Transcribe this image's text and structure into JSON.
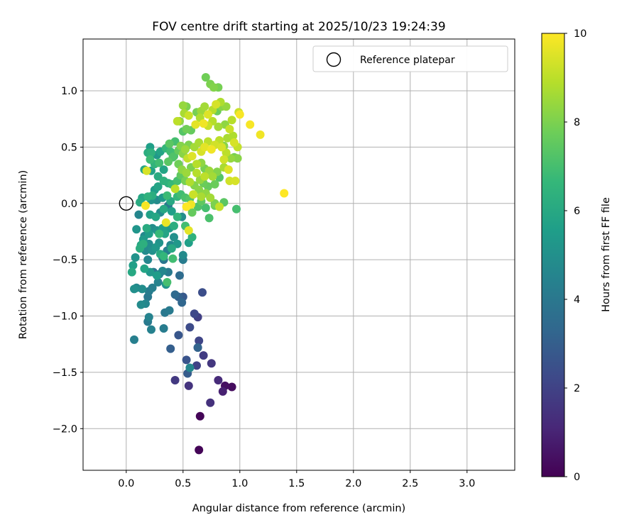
{
  "chart_data": {
    "type": "scatter",
    "title": "FOV centre drift starting at 2025/10/23 19:24:39",
    "xlabel": "Angular distance from reference (arcmin)",
    "ylabel": "Rotation from reference (arcmin)",
    "xlim": [
      -0.38,
      3.42
    ],
    "ylim": [
      -2.37,
      1.46
    ],
    "x_ticks": [
      0.0,
      0.5,
      1.0,
      1.5,
      2.0,
      2.5,
      3.0
    ],
    "x_tick_labels": [
      "0.0",
      "0.5",
      "1.0",
      "1.5",
      "2.0",
      "2.5",
      "3.0"
    ],
    "y_ticks": [
      -2.0,
      -1.5,
      -1.0,
      -0.5,
      0.0,
      0.5,
      1.0
    ],
    "y_tick_labels": [
      "−2.0",
      "−1.5",
      "−1.0",
      "−0.5",
      "0.0",
      "0.5",
      "1.0"
    ],
    "grid": true,
    "legend": {
      "position": "top-right",
      "entries": [
        "Reference platepar"
      ]
    },
    "reference_point": {
      "label": "Reference platepar",
      "x": 0.0,
      "y": 0.0
    },
    "colorbar": {
      "label": "Hours from first FF file",
      "range": [
        0,
        10
      ],
      "ticks": [
        0,
        2,
        4,
        6,
        8,
        10
      ],
      "tick_labels": [
        "0",
        "2",
        "4",
        "6",
        "8",
        "10"
      ],
      "colormap": "viridis"
    },
    "colormap_stops": [
      "#440154",
      "#482878",
      "#3e4989",
      "#31688e",
      "#26828e",
      "#1f9e89",
      "#35b779",
      "#6ece58",
      "#b5de2b",
      "#fde725"
    ],
    "points": [
      [
        0.64,
        -2.19,
        0.1
      ],
      [
        0.65,
        -1.89,
        0.1
      ],
      [
        0.93,
        -1.63,
        0.3
      ],
      [
        0.87,
        -1.62,
        0.4
      ],
      [
        0.85,
        -1.67,
        0.9
      ],
      [
        0.81,
        -1.57,
        1.2
      ],
      [
        0.74,
        -1.77,
        1.4
      ],
      [
        0.68,
        -1.35,
        1.8
      ],
      [
        0.75,
        -1.42,
        1.6
      ],
      [
        0.55,
        -1.62,
        1.5
      ],
      [
        0.43,
        -1.57,
        1.7
      ],
      [
        0.62,
        -1.44,
        2.0
      ],
      [
        0.63,
        -1.28,
        2.2
      ],
      [
        0.64,
        -1.22,
        2.1
      ],
      [
        0.56,
        -1.1,
        2.3
      ],
      [
        0.6,
        -0.98,
        2.2
      ],
      [
        0.63,
        -1.01,
        1.9
      ],
      [
        0.67,
        -0.79,
        2.4
      ],
      [
        0.53,
        -1.39,
        2.6
      ],
      [
        0.54,
        -1.51,
        2.9
      ],
      [
        0.56,
        -1.46,
        4.6
      ],
      [
        0.46,
        -1.17,
        2.7
      ],
      [
        0.39,
        -1.29,
        3.0
      ],
      [
        0.63,
        -1.28,
        3.2
      ],
      [
        0.46,
        -0.83,
        3.1
      ],
      [
        0.5,
        -0.83,
        2.8
      ],
      [
        0.49,
        -0.88,
        3.3
      ],
      [
        0.43,
        -0.81,
        3.4
      ],
      [
        0.47,
        -0.64,
        3.5
      ],
      [
        0.38,
        -0.95,
        4.1
      ],
      [
        0.34,
        -0.97,
        4.0
      ],
      [
        0.33,
        -1.11,
        4.2
      ],
      [
        0.22,
        -1.12,
        4.4
      ],
      [
        0.19,
        -1.05,
        4.1
      ],
      [
        0.2,
        -1.01,
        4.5
      ],
      [
        0.07,
        -1.21,
        4.3
      ],
      [
        0.17,
        -0.89,
        4.6
      ],
      [
        0.13,
        -0.9,
        4.8
      ],
      [
        0.19,
        -0.83,
        4.0
      ],
      [
        0.2,
        -0.78,
        4.2
      ],
      [
        0.14,
        -0.76,
        4.9
      ],
      [
        0.09,
        -0.75,
        4.7
      ],
      [
        0.07,
        -0.76,
        5.0
      ],
      [
        0.23,
        -0.75,
        4.3
      ],
      [
        0.28,
        -0.7,
        4.5
      ],
      [
        0.35,
        -0.72,
        5.2
      ],
      [
        0.37,
        -0.61,
        4.1
      ],
      [
        0.29,
        -0.63,
        4.4
      ],
      [
        0.27,
        -0.64,
        5.5
      ],
      [
        0.32,
        -0.6,
        4.6
      ],
      [
        0.24,
        -0.61,
        4.0
      ],
      [
        0.21,
        -0.61,
        5.3
      ],
      [
        0.16,
        -0.58,
        5.8
      ],
      [
        0.05,
        -0.61,
        6.0
      ],
      [
        0.06,
        -0.55,
        5.6
      ],
      [
        0.08,
        -0.48,
        5.1
      ],
      [
        0.12,
        -0.4,
        6.2
      ],
      [
        0.13,
        -0.37,
        5.9
      ],
      [
        0.17,
        -0.42,
        4.8
      ],
      [
        0.19,
        -0.5,
        4.6
      ],
      [
        0.2,
        -0.36,
        4.9
      ],
      [
        0.23,
        -0.42,
        5.0
      ],
      [
        0.26,
        -0.39,
        5.3
      ],
      [
        0.29,
        -0.35,
        5.1
      ],
      [
        0.32,
        -0.48,
        4.2
      ],
      [
        0.33,
        -0.5,
        3.9
      ],
      [
        0.36,
        -0.42,
        4.4
      ],
      [
        0.39,
        -0.37,
        4.7
      ],
      [
        0.42,
        -0.3,
        5.0
      ],
      [
        0.45,
        -0.36,
        5.3
      ],
      [
        0.5,
        -0.46,
        4.8
      ],
      [
        0.5,
        -0.5,
        4.2
      ],
      [
        0.55,
        -0.35,
        5.6
      ],
      [
        0.58,
        -0.3,
        6.4
      ],
      [
        0.41,
        -0.49,
        6.9
      ],
      [
        0.33,
        -0.47,
        6.6
      ],
      [
        0.36,
        -0.7,
        7.0
      ],
      [
        0.3,
        -0.45,
        6.1
      ],
      [
        0.4,
        -0.4,
        6.0
      ],
      [
        0.42,
        -0.2,
        6.2
      ],
      [
        0.38,
        -0.22,
        5.4
      ],
      [
        0.34,
        -0.27,
        5.8
      ],
      [
        0.32,
        -0.22,
        5.6
      ],
      [
        0.29,
        -0.27,
        6.7
      ],
      [
        0.27,
        -0.24,
        5.1
      ],
      [
        0.23,
        -0.22,
        4.9
      ],
      [
        0.2,
        -0.27,
        5.5
      ],
      [
        0.18,
        -0.22,
        6.1
      ],
      [
        0.16,
        -0.29,
        4.7
      ],
      [
        0.15,
        -0.32,
        5.4
      ],
      [
        0.09,
        -0.23,
        5.2
      ],
      [
        0.15,
        -0.36,
        6.3
      ],
      [
        0.21,
        -0.1,
        5.7
      ],
      [
        0.11,
        -0.1,
        4.6
      ],
      [
        0.26,
        -0.12,
        5.9
      ],
      [
        0.3,
        -0.08,
        4.8
      ],
      [
        0.33,
        -0.05,
        6.0
      ],
      [
        0.37,
        -0.02,
        4.1
      ],
      [
        0.4,
        -0.07,
        5.6
      ],
      [
        0.45,
        -0.12,
        6.5
      ],
      [
        0.49,
        -0.12,
        4.9
      ],
      [
        0.52,
        -0.2,
        6.9
      ],
      [
        0.55,
        -0.24,
        9.6
      ],
      [
        0.35,
        -0.17,
        9.7
      ],
      [
        0.17,
        -0.02,
        9.9
      ],
      [
        0.12,
        0.01,
        6.1
      ],
      [
        0.14,
        0.05,
        5.9
      ],
      [
        0.19,
        0.06,
        6.4
      ],
      [
        0.23,
        0.07,
        6.2
      ],
      [
        0.25,
        0.12,
        5.5
      ],
      [
        0.28,
        0.15,
        5.8
      ],
      [
        0.22,
        0.03,
        5.1
      ],
      [
        0.27,
        0.03,
        4.8
      ],
      [
        0.32,
        0.05,
        5.3
      ],
      [
        0.36,
        0.07,
        6.8
      ],
      [
        0.39,
        0.02,
        6.0
      ],
      [
        0.45,
        0.06,
        6.6
      ],
      [
        0.48,
        0.08,
        6.9
      ],
      [
        0.52,
        0.05,
        7.1
      ],
      [
        0.56,
        0.04,
        7.3
      ],
      [
        0.58,
        -0.08,
        7.6
      ],
      [
        0.63,
        -0.03,
        7.2
      ],
      [
        0.66,
        0.02,
        7.5
      ],
      [
        0.7,
        -0.04,
        7.0
      ],
      [
        0.73,
        -0.13,
        7.1
      ],
      [
        0.57,
        -0.01,
        9.8
      ],
      [
        0.53,
        -0.03,
        10.0
      ],
      [
        0.59,
        0.08,
        9.2
      ],
      [
        0.66,
        0.06,
        8.7
      ],
      [
        0.7,
        0.09,
        8.3
      ],
      [
        0.74,
        0.05,
        8.6
      ],
      [
        0.78,
        0.0,
        8.0
      ],
      [
        0.82,
        -0.03,
        9.1
      ],
      [
        0.86,
        0.01,
        7.4
      ],
      [
        0.78,
        -0.02,
        7.8
      ],
      [
        0.72,
        0.15,
        7.6
      ],
      [
        0.68,
        0.18,
        7.7
      ],
      [
        0.64,
        0.12,
        8.2
      ],
      [
        0.6,
        0.16,
        8.1
      ],
      [
        0.56,
        0.19,
        8.8
      ],
      [
        0.52,
        0.2,
        7.9
      ],
      [
        0.48,
        0.25,
        7.5
      ],
      [
        0.45,
        0.2,
        7.0
      ],
      [
        0.43,
        0.13,
        9.0
      ],
      [
        0.4,
        0.17,
        6.7
      ],
      [
        0.37,
        0.18,
        6.3
      ],
      [
        0.33,
        0.2,
        6.4
      ],
      [
        0.28,
        0.24,
        6.1
      ],
      [
        0.22,
        0.29,
        5.7
      ],
      [
        0.18,
        0.29,
        9.4
      ],
      [
        0.16,
        0.3,
        5.9
      ],
      [
        0.21,
        0.39,
        6.8
      ],
      [
        0.25,
        0.35,
        6.5
      ],
      [
        0.29,
        0.36,
        6.9
      ],
      [
        0.33,
        0.3,
        5.8
      ],
      [
        0.37,
        0.37,
        7.4
      ],
      [
        0.41,
        0.41,
        7.2
      ],
      [
        0.46,
        0.35,
        7.8
      ],
      [
        0.49,
        0.3,
        8.3
      ],
      [
        0.53,
        0.27,
        8.5
      ],
      [
        0.57,
        0.32,
        8.0
      ],
      [
        0.62,
        0.27,
        8.9
      ],
      [
        0.65,
        0.21,
        8.4
      ],
      [
        0.69,
        0.24,
        9.0
      ],
      [
        0.73,
        0.29,
        8.5
      ],
      [
        0.76,
        0.24,
        8.6
      ],
      [
        0.8,
        0.28,
        8.1
      ],
      [
        0.86,
        0.32,
        8.7
      ],
      [
        0.9,
        0.3,
        9.5
      ],
      [
        0.92,
        0.4,
        8.4
      ],
      [
        0.95,
        0.41,
        7.9
      ],
      [
        0.98,
        0.4,
        8.2
      ],
      [
        0.91,
        0.2,
        9.3
      ],
      [
        0.82,
        0.23,
        7.3
      ],
      [
        0.78,
        0.17,
        7.7
      ],
      [
        0.69,
        0.31,
        7.9
      ],
      [
        0.66,
        0.36,
        8.3
      ],
      [
        0.62,
        0.35,
        8.9
      ],
      [
        0.58,
        0.42,
        9.5
      ],
      [
        0.54,
        0.4,
        9.1
      ],
      [
        0.5,
        0.44,
        8.2
      ],
      [
        0.46,
        0.47,
        7.6
      ],
      [
        0.42,
        0.42,
        7.1
      ],
      [
        0.39,
        0.46,
        6.9
      ],
      [
        0.35,
        0.49,
        6.6
      ],
      [
        0.3,
        0.46,
        5.8
      ],
      [
        0.27,
        0.43,
        5.3
      ],
      [
        0.22,
        0.45,
        6.4
      ],
      [
        0.19,
        0.45,
        6.2
      ],
      [
        0.21,
        0.5,
        5.6
      ],
      [
        0.38,
        0.53,
        7.4
      ],
      [
        0.43,
        0.55,
        7.0
      ],
      [
        0.48,
        0.51,
        8.1
      ],
      [
        0.52,
        0.48,
        8.5
      ],
      [
        0.55,
        0.52,
        8.0
      ],
      [
        0.6,
        0.5,
        8.6
      ],
      [
        0.64,
        0.54,
        8.7
      ],
      [
        0.66,
        0.46,
        9.4
      ],
      [
        0.69,
        0.5,
        9.6
      ],
      [
        0.72,
        0.55,
        9.0
      ],
      [
        0.75,
        0.48,
        9.8
      ],
      [
        0.78,
        0.52,
        9.3
      ],
      [
        0.82,
        0.56,
        9.0
      ],
      [
        0.86,
        0.51,
        8.2
      ],
      [
        0.89,
        0.58,
        8.7
      ],
      [
        0.94,
        0.6,
        8.8
      ],
      [
        0.98,
        0.5,
        9.1
      ],
      [
        0.95,
        0.54,
        9.4
      ],
      [
        0.91,
        0.66,
        9.2
      ],
      [
        0.87,
        0.7,
        8.3
      ],
      [
        0.81,
        0.68,
        8.6
      ],
      [
        0.76,
        0.73,
        8.9
      ],
      [
        0.72,
        0.69,
        9.2
      ],
      [
        0.68,
        0.71,
        9.8
      ],
      [
        0.65,
        0.76,
        8.8
      ],
      [
        0.61,
        0.7,
        9.6
      ],
      [
        0.57,
        0.65,
        7.6
      ],
      [
        0.53,
        0.66,
        7.8
      ],
      [
        0.5,
        0.64,
        7.3
      ],
      [
        0.47,
        0.73,
        8.3
      ],
      [
        0.45,
        0.73,
        9.0
      ],
      [
        0.51,
        0.8,
        8.7
      ],
      [
        0.55,
        0.78,
        9.2
      ],
      [
        0.62,
        0.81,
        7.9
      ],
      [
        0.66,
        0.82,
        8.5
      ],
      [
        0.69,
        0.86,
        8.6
      ],
      [
        0.72,
        0.79,
        9.5
      ],
      [
        0.76,
        0.83,
        8.9
      ],
      [
        0.8,
        0.82,
        7.7
      ],
      [
        0.84,
        0.86,
        8.2
      ],
      [
        0.79,
        0.88,
        9.4
      ],
      [
        0.83,
        0.9,
        8.8
      ],
      [
        0.88,
        0.86,
        8.4
      ],
      [
        0.93,
        0.74,
        8.9
      ],
      [
        0.99,
        0.81,
        9.2
      ],
      [
        1.0,
        0.79,
        9.9
      ],
      [
        1.09,
        0.7,
        9.9
      ],
      [
        1.18,
        0.61,
        9.8
      ],
      [
        0.74,
        1.06,
        8.0
      ],
      [
        0.77,
        1.03,
        8.1
      ],
      [
        0.81,
        1.03,
        7.9
      ],
      [
        0.7,
        1.12,
        7.8
      ],
      [
        0.5,
        0.87,
        8.4
      ],
      [
        0.53,
        0.86,
        8.0
      ],
      [
        0.96,
        0.2,
        9.4
      ],
      [
        0.97,
        -0.05,
        7.0
      ],
      [
        1.39,
        0.09,
        10.0
      ],
      [
        0.88,
        0.45,
        9.0
      ],
      [
        0.86,
        0.39,
        9.3
      ],
      [
        0.84,
        0.5,
        9.4
      ]
    ]
  }
}
